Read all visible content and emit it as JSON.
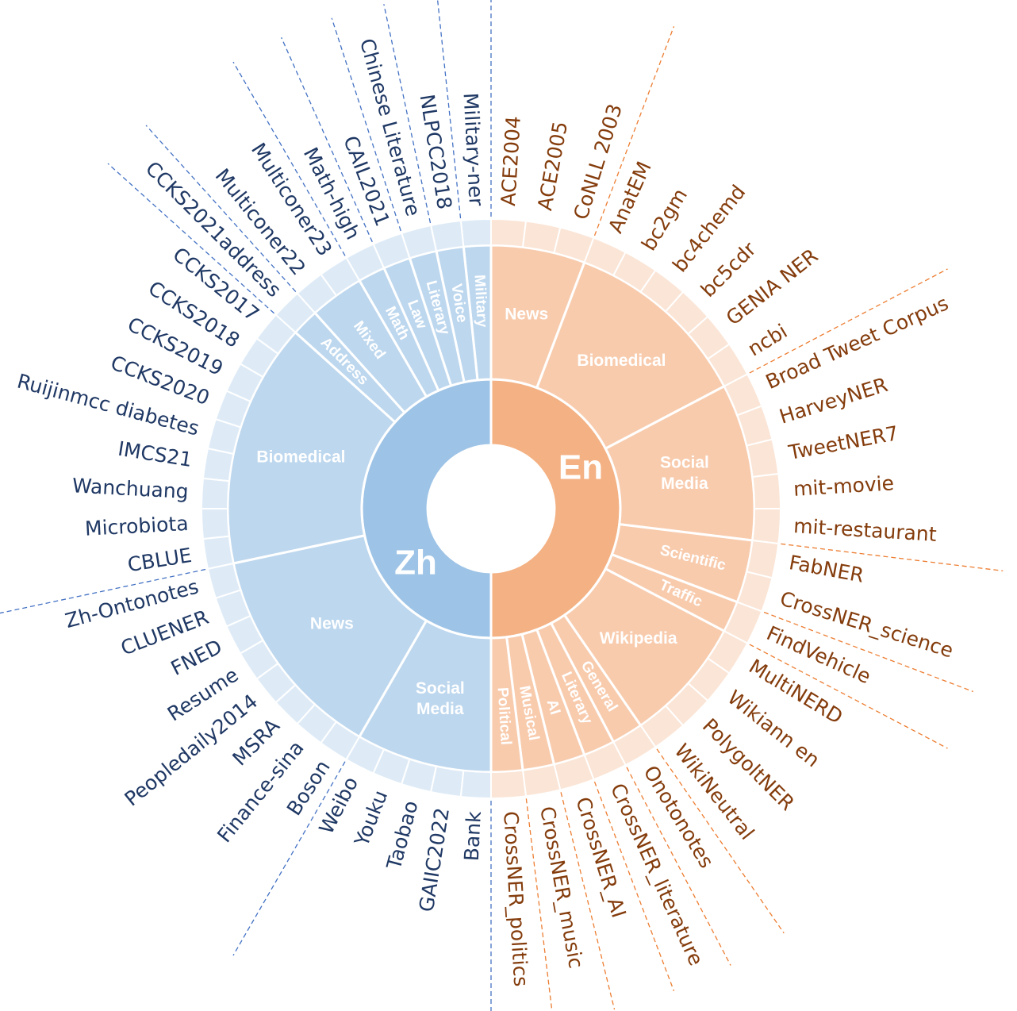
{
  "center": {
    "zh_label": "Zh",
    "en_label": "En"
  },
  "colors": {
    "zh_inner": "#9dc3e6",
    "zh_mid": "#bdd7ee",
    "zh_outer": "#deebf7",
    "zh_text": "#1f3864",
    "zh_line": "#4472c4",
    "en_inner": "#f4b183",
    "en_mid": "#f8cbad",
    "en_outer": "#fbe5d6",
    "en_text": "#843c0c",
    "en_line": "#ed7d31"
  },
  "zh_domains": [
    {
      "label": "Military",
      "datasets": [
        "Military-ner"
      ]
    },
    {
      "label": "Voice",
      "datasets": [
        "NLPCC2018"
      ]
    },
    {
      "label": "Literary",
      "datasets": [
        "Chinese Literature"
      ]
    },
    {
      "label": "Law",
      "datasets": [
        "CAIL2021"
      ]
    },
    {
      "label": "Math",
      "datasets": [
        "Math-high"
      ]
    },
    {
      "label": "Mixed",
      "datasets": [
        "Multiconer23",
        "Multiconer22"
      ]
    },
    {
      "label": "Address",
      "datasets": [
        "CCKS2021address"
      ]
    },
    {
      "label": "Biomedical",
      "datasets": [
        "CCKS2017",
        "CCKS2018",
        "CCKS2019",
        "CCKS2020",
        "Ruijinmcc diabetes",
        "IMCS21",
        "Wanchuang",
        "Microbiota",
        "CBLUE"
      ]
    },
    {
      "label": "News",
      "datasets": [
        "Zh-Ontonotes",
        "CLUENER",
        "FNED",
        "Resume",
        "Peopledaily2014",
        "MSRA",
        "Finance-sina",
        "Boson"
      ]
    },
    {
      "label": "Social Media",
      "datasets": [
        "Weibo",
        "Youku",
        "Taobao",
        "GAIIC2022",
        "Bank"
      ]
    }
  ],
  "en_domains": [
    {
      "label": "News",
      "datasets": [
        "ACE2004",
        "ACE2005",
        "CoNLL 2003"
      ]
    },
    {
      "label": "Biomedical",
      "datasets": [
        "AnatEM",
        "bc2gm",
        "bc4chemd",
        "bc5cdr",
        "GENIA NER",
        "ncbi"
      ]
    },
    {
      "label": "Social Media",
      "datasets": [
        "Broad Tweet Corpus",
        "HarveyNER",
        "TweetNER7",
        "mit-movie",
        "mit-restaurant"
      ]
    },
    {
      "label": "Scientific",
      "datasets": [
        "FabNER",
        "CrossNER_science"
      ]
    },
    {
      "label": "Traffic",
      "datasets": [
        "FindVehicle"
      ]
    },
    {
      "label": "Wikipedia",
      "datasets": [
        "MultiNERD",
        "Wikiann en",
        "PolygoltNER",
        "WikiNeutral"
      ]
    },
    {
      "label": "General",
      "datasets": [
        "Onotonotes"
      ]
    },
    {
      "label": "Literary",
      "datasets": [
        "CrossNER_literature"
      ]
    },
    {
      "label": "AI",
      "datasets": [
        "CrossNER_AI"
      ]
    },
    {
      "label": "Musical",
      "datasets": [
        "CrossNER_music"
      ]
    },
    {
      "label": "Political",
      "datasets": [
        "CrossNER_politics"
      ]
    }
  ]
}
